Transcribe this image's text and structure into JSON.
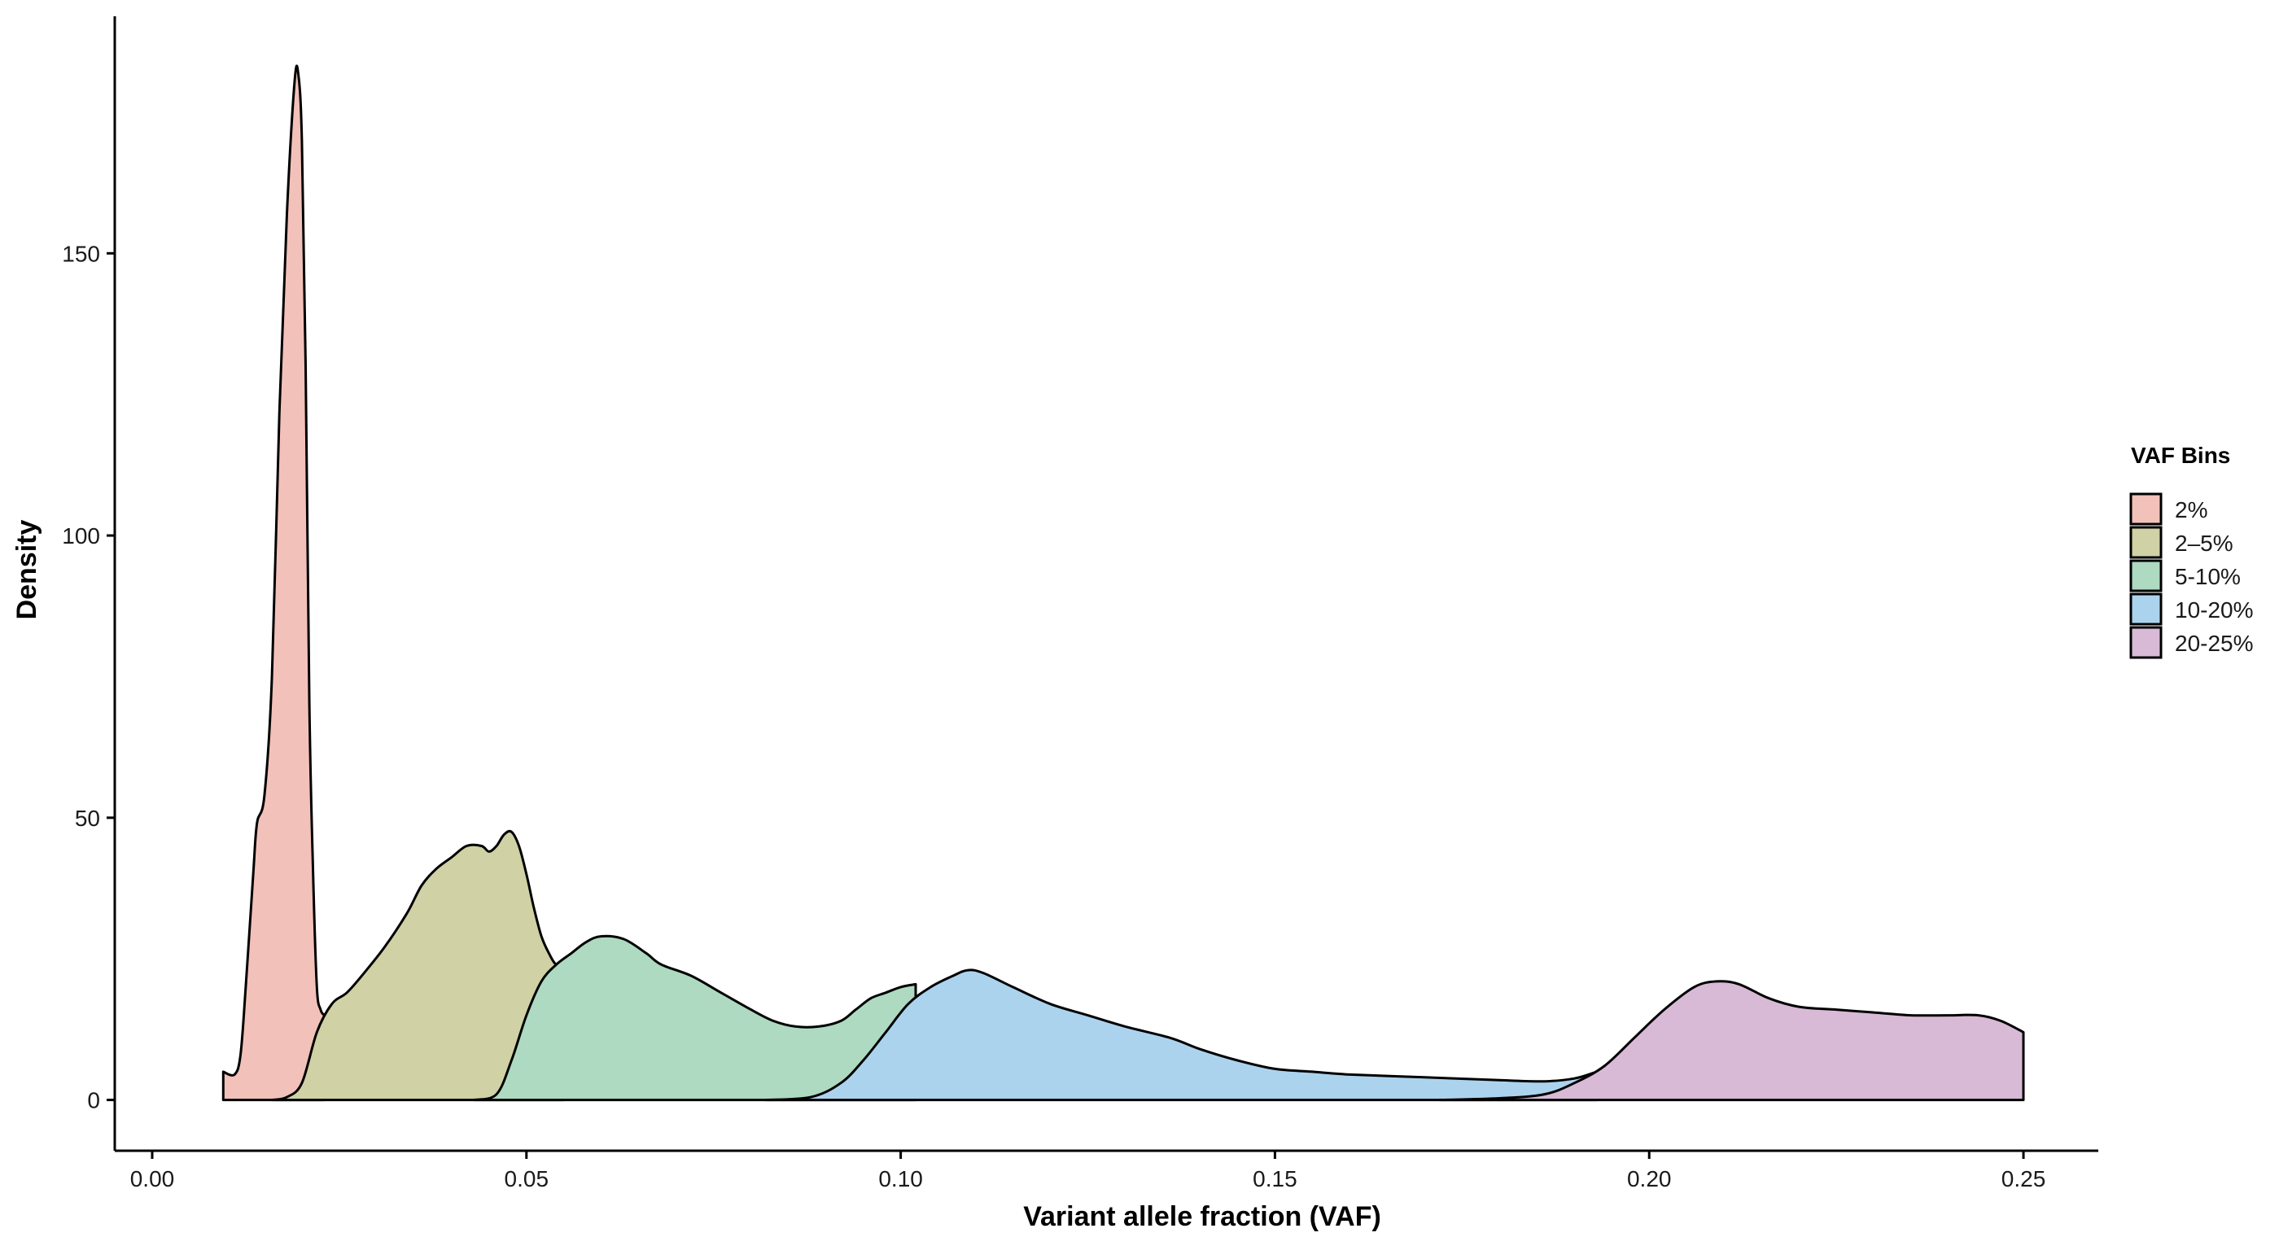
{
  "chart_data": {
    "type": "area",
    "title": "",
    "xlabel": "Variant allele fraction (VAF)",
    "ylabel": "Density",
    "xlim": [
      -0.005,
      0.26
    ],
    "ylim": [
      -9,
      192
    ],
    "x_ticks": [
      0.0,
      0.05,
      0.1,
      0.15,
      0.2,
      0.25
    ],
    "x_tick_labels": [
      "0.00",
      "0.05",
      "0.10",
      "0.15",
      "0.20",
      "0.25"
    ],
    "y_ticks": [
      0,
      50,
      100,
      150
    ],
    "y_tick_labels": [
      "0",
      "50",
      "100",
      "150"
    ],
    "grid": false,
    "legend": {
      "title": "VAF Bins",
      "position": "right"
    },
    "series": [
      {
        "name": "2%",
        "color": "#F2C1B9",
        "points": [
          [
            0.0095,
            5
          ],
          [
            0.011,
            4.5
          ],
          [
            0.0118,
            8
          ],
          [
            0.0125,
            20
          ],
          [
            0.0135,
            40
          ],
          [
            0.014,
            49
          ],
          [
            0.015,
            54
          ],
          [
            0.016,
            75
          ],
          [
            0.017,
            122
          ],
          [
            0.018,
            157
          ],
          [
            0.019,
            180
          ],
          [
            0.0195,
            182
          ],
          [
            0.02,
            170
          ],
          [
            0.0205,
            130
          ],
          [
            0.021,
            70
          ],
          [
            0.0215,
            40
          ],
          [
            0.022,
            20
          ],
          [
            0.0225,
            16
          ],
          [
            0.023,
            15
          ]
        ]
      },
      {
        "name": "2–5%",
        "color": "#D0D1A4",
        "points": [
          [
            0.016,
            0
          ],
          [
            0.018,
            0.5
          ],
          [
            0.02,
            3
          ],
          [
            0.022,
            12
          ],
          [
            0.024,
            17
          ],
          [
            0.026,
            19
          ],
          [
            0.028,
            22
          ],
          [
            0.031,
            27
          ],
          [
            0.034,
            33
          ],
          [
            0.036,
            38
          ],
          [
            0.038,
            41
          ],
          [
            0.04,
            43
          ],
          [
            0.042,
            45
          ],
          [
            0.044,
            45
          ],
          [
            0.045,
            44
          ],
          [
            0.046,
            45
          ],
          [
            0.047,
            47
          ],
          [
            0.048,
            47.5
          ],
          [
            0.049,
            45
          ],
          [
            0.05,
            40
          ],
          [
            0.051,
            34
          ],
          [
            0.052,
            29
          ],
          [
            0.053,
            26
          ],
          [
            0.054,
            24
          ],
          [
            0.055,
            25
          ]
        ]
      },
      {
        "name": "5-10%",
        "color": "#ADDAC1",
        "points": [
          [
            0.043,
            0
          ],
          [
            0.046,
            1
          ],
          [
            0.048,
            7
          ],
          [
            0.05,
            15
          ],
          [
            0.052,
            21
          ],
          [
            0.054,
            24
          ],
          [
            0.056,
            26
          ],
          [
            0.058,
            28
          ],
          [
            0.06,
            29
          ],
          [
            0.063,
            28.5
          ],
          [
            0.066,
            26
          ],
          [
            0.068,
            24
          ],
          [
            0.072,
            22
          ],
          [
            0.076,
            19
          ],
          [
            0.08,
            16
          ],
          [
            0.083,
            14
          ],
          [
            0.086,
            13
          ],
          [
            0.089,
            13
          ],
          [
            0.092,
            14
          ],
          [
            0.094,
            16
          ],
          [
            0.096,
            18
          ],
          [
            0.098,
            19
          ],
          [
            0.1,
            20
          ],
          [
            0.102,
            20.5
          ]
        ]
      },
      {
        "name": "10-20%",
        "color": "#ACD3EE",
        "points": [
          [
            0.082,
            0
          ],
          [
            0.088,
            0.5
          ],
          [
            0.092,
            3
          ],
          [
            0.095,
            7
          ],
          [
            0.098,
            12
          ],
          [
            0.101,
            17
          ],
          [
            0.104,
            20
          ],
          [
            0.107,
            22
          ],
          [
            0.109,
            23
          ],
          [
            0.111,
            22.5
          ],
          [
            0.115,
            20
          ],
          [
            0.12,
            17
          ],
          [
            0.125,
            15
          ],
          [
            0.13,
            13
          ],
          [
            0.136,
            11
          ],
          [
            0.14,
            9
          ],
          [
            0.145,
            7
          ],
          [
            0.15,
            5.5
          ],
          [
            0.155,
            5
          ],
          [
            0.16,
            4.5
          ],
          [
            0.17,
            4
          ],
          [
            0.18,
            3.5
          ],
          [
            0.186,
            3.3
          ],
          [
            0.19,
            3.8
          ],
          [
            0.193,
            5
          ]
        ]
      },
      {
        "name": "20-25%",
        "color": "#D8BAD6",
        "points": [
          [
            0.172,
            0
          ],
          [
            0.18,
            0.3
          ],
          [
            0.186,
            1
          ],
          [
            0.19,
            3
          ],
          [
            0.194,
            6
          ],
          [
            0.198,
            11
          ],
          [
            0.202,
            16
          ],
          [
            0.206,
            20
          ],
          [
            0.209,
            21
          ],
          [
            0.212,
            20.5
          ],
          [
            0.216,
            18
          ],
          [
            0.22,
            16.5
          ],
          [
            0.225,
            16
          ],
          [
            0.23,
            15.5
          ],
          [
            0.235,
            15
          ],
          [
            0.24,
            15
          ],
          [
            0.244,
            15
          ],
          [
            0.247,
            14
          ],
          [
            0.25,
            12
          ]
        ]
      }
    ]
  }
}
